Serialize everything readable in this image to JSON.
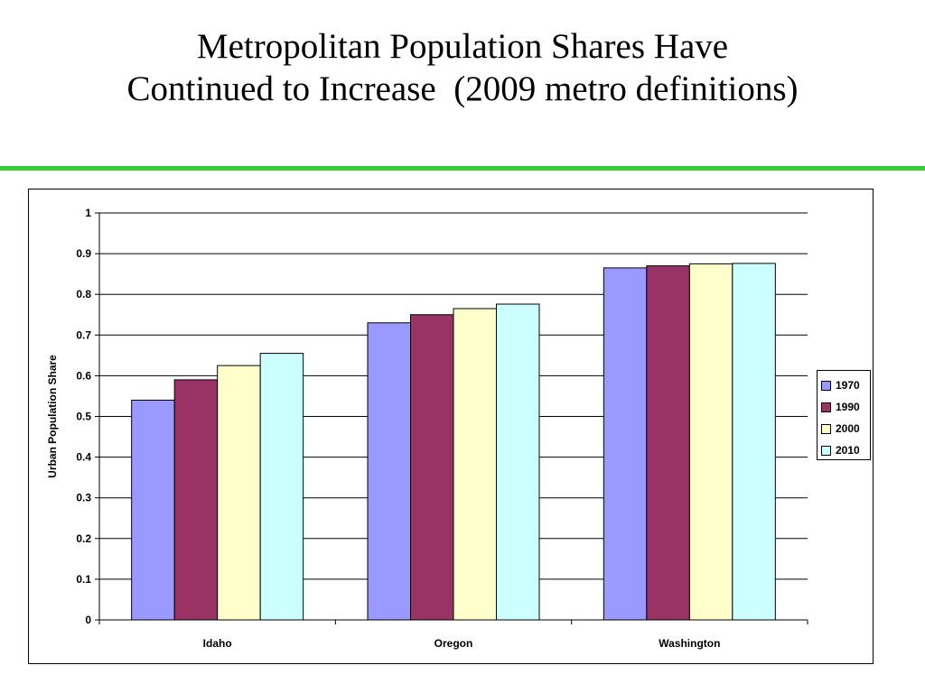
{
  "slide": {
    "title_line1": "Metropolitan Population Shares Have",
    "title_line2": "Continued to Increase  (2009 metro definitions)",
    "rule_color": "#33cc33"
  },
  "chart_data": {
    "type": "bar",
    "ylabel": "Urban Population Share",
    "xlabel": "",
    "ylim": [
      0,
      1
    ],
    "yticks": [
      "0",
      "0.1",
      "0.2",
      "0.3",
      "0.4",
      "0.5",
      "0.6",
      "0.7",
      "0.8",
      "0.9",
      "1"
    ],
    "categories": [
      "Idaho",
      "Oregon",
      "Washington"
    ],
    "grid": true,
    "legend_position": "right",
    "series": [
      {
        "name": "1970",
        "color": "#9999ff",
        "values": [
          0.54,
          0.73,
          0.865
        ]
      },
      {
        "name": "1990",
        "color": "#993366",
        "values": [
          0.59,
          0.75,
          0.87
        ]
      },
      {
        "name": "2000",
        "color": "#ffffcc",
        "values": [
          0.625,
          0.765,
          0.875
        ]
      },
      {
        "name": "2010",
        "color": "#ccffff",
        "values": [
          0.655,
          0.776,
          0.876
        ]
      }
    ]
  }
}
